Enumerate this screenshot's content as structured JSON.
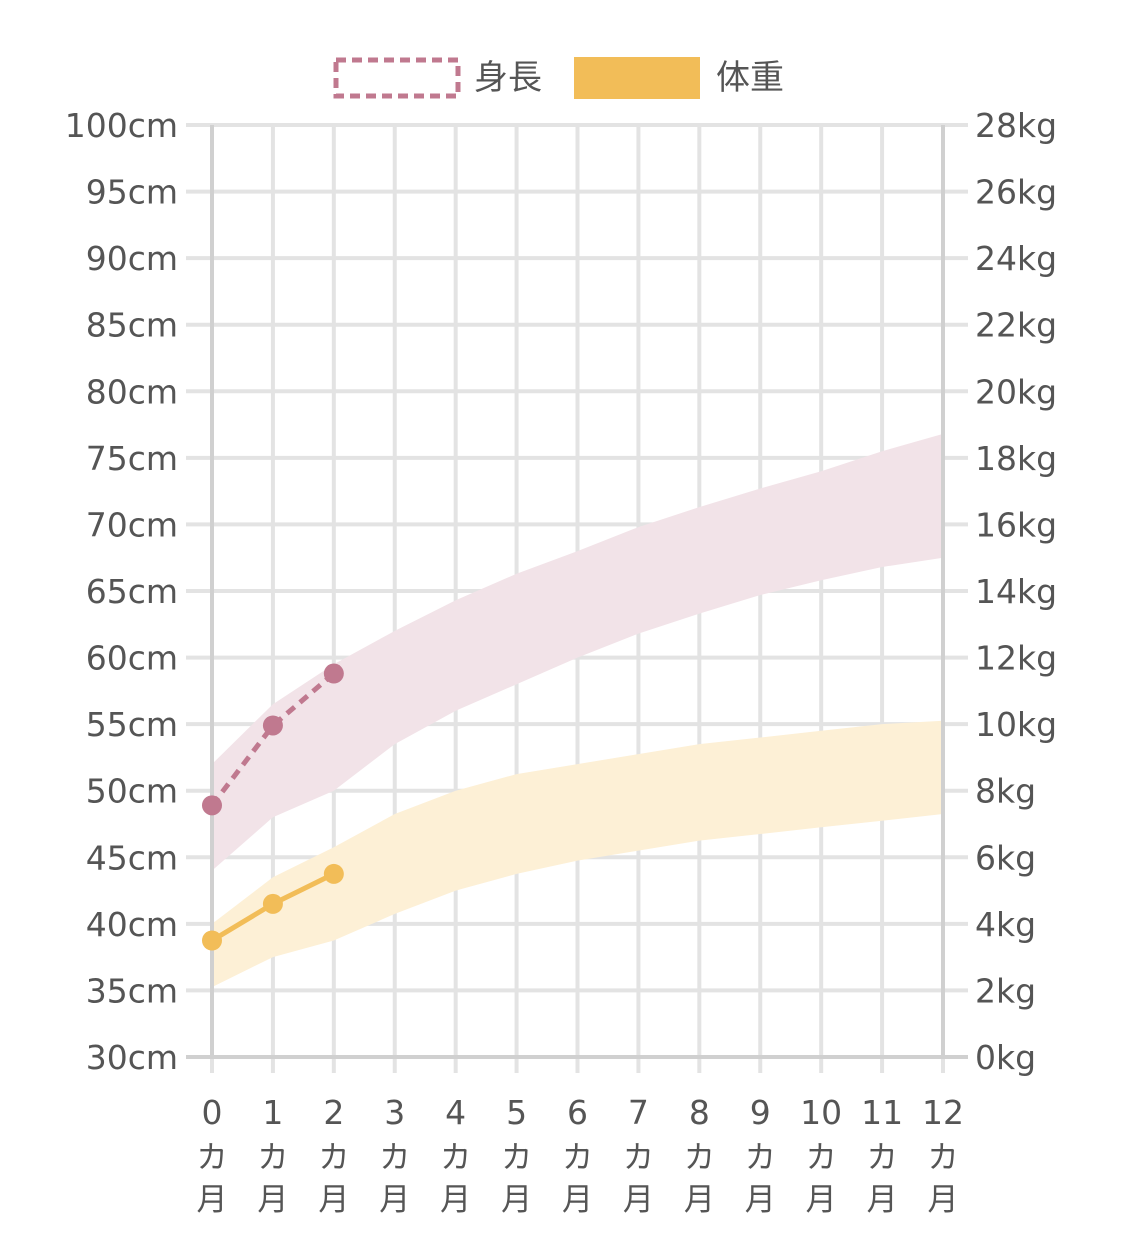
{
  "chart_data": {
    "type": "line",
    "legend": {
      "placement": "top-center",
      "items": [
        {
          "label": "身長",
          "style": "dashed-outline",
          "color": "#c0798f"
        },
        {
          "label": "体重",
          "style": "filled",
          "color": "#f2bd58"
        }
      ]
    },
    "x_axis": {
      "values": [
        0,
        1,
        2,
        3,
        4,
        5,
        6,
        7,
        8,
        9,
        10,
        11,
        12
      ],
      "unit_line1": "カ",
      "unit_line2": "月"
    },
    "y_left": {
      "range": [
        30,
        100
      ],
      "step": 5,
      "tick_labels": [
        "100cm",
        "95cm",
        "90cm",
        "85cm",
        "80cm",
        "75cm",
        "70cm",
        "65cm",
        "60cm",
        "55cm",
        "50cm",
        "45cm",
        "40cm",
        "35cm",
        "30cm"
      ]
    },
    "y_right": {
      "range": [
        0,
        28
      ],
      "step": 2,
      "tick_labels": [
        "28kg",
        "26kg",
        "24kg",
        "22kg",
        "20kg",
        "18kg",
        "16kg",
        "14kg",
        "12kg",
        "10kg",
        "8kg",
        "6kg",
        "4kg",
        "2kg",
        "0kg"
      ]
    },
    "grid": true,
    "series": [
      {
        "name": "身長",
        "axis": "left",
        "color": "#c0798f",
        "line_style": "dashed",
        "x": [
          0,
          1,
          2
        ],
        "values": [
          48.9,
          54.9,
          58.8
        ]
      },
      {
        "name": "体重",
        "axis": "right",
        "color": "#f2bd58",
        "line_style": "solid",
        "x": [
          0,
          1,
          2
        ],
        "values": [
          3.5,
          4.6,
          5.5
        ]
      }
    ],
    "bands": [
      {
        "name": "身長",
        "axis": "left",
        "color": "#f2e3e8",
        "x": [
          0,
          1,
          2,
          3,
          4,
          5,
          6,
          7,
          8,
          9,
          10,
          11,
          12
        ],
        "lower": [
          44,
          48,
          50,
          53.5,
          56,
          58,
          60,
          61.8,
          63.3,
          64.7,
          65.8,
          66.8,
          67.5
        ],
        "upper": [
          52,
          56.5,
          59.5,
          62,
          64.3,
          66.3,
          68,
          69.8,
          71.3,
          72.7,
          74,
          75.5,
          76.8
        ]
      },
      {
        "name": "体重",
        "axis": "right",
        "color": "#fdf0d6",
        "x": [
          0,
          1,
          2,
          3,
          4,
          5,
          6,
          7,
          8,
          9,
          10,
          11,
          12
        ],
        "lower": [
          2.1,
          3,
          3.5,
          4.3,
          5,
          5.5,
          5.9,
          6.2,
          6.5,
          6.7,
          6.9,
          7.1,
          7.3
        ],
        "upper": [
          4,
          5.4,
          6.3,
          7.3,
          8,
          8.5,
          8.8,
          9.1,
          9.4,
          9.6,
          9.8,
          10,
          10.1
        ]
      }
    ]
  }
}
